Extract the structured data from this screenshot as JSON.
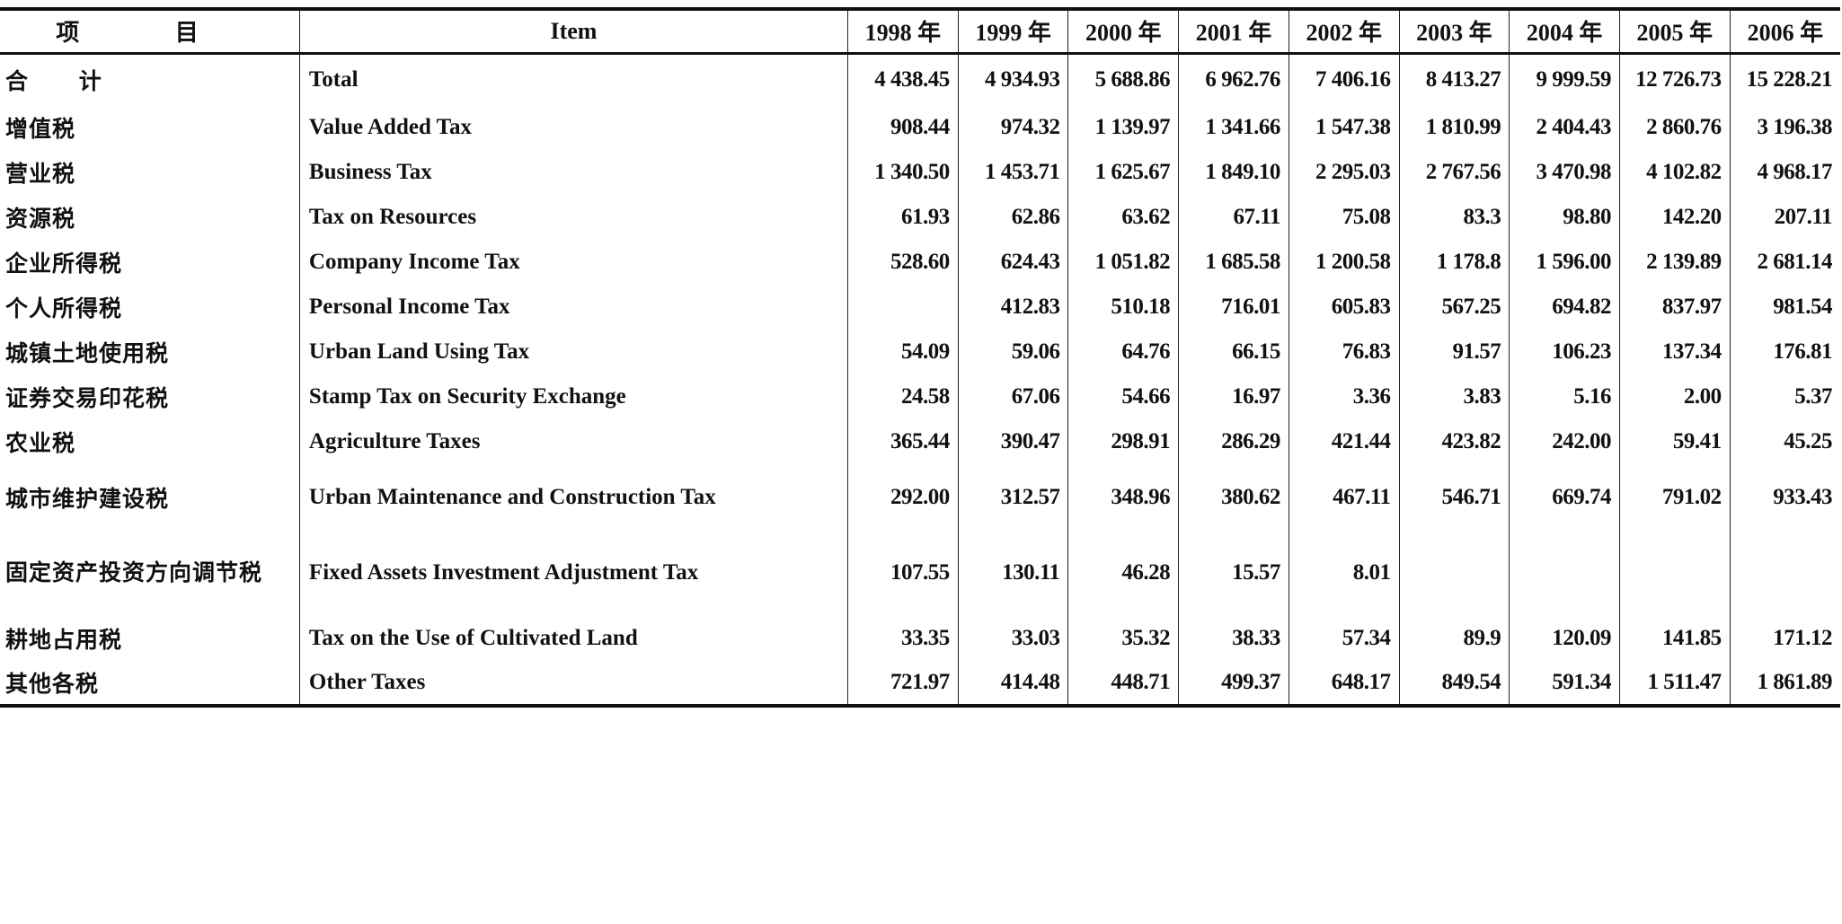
{
  "header": {
    "cn": "项 目",
    "en": "Item",
    "years": [
      "1998 年",
      "1999 年",
      "2000 年",
      "2001 年",
      "2002 年",
      "2003 年",
      "2004 年",
      "2005 年",
      "2006 年"
    ]
  },
  "rows": [
    {
      "cn": "合 计",
      "en": "Total",
      "values": [
        "4 438.45",
        "4 934.93",
        "5 688.86",
        "6 962.76",
        "7 406.16",
        "8 413.27",
        "9 999.59",
        "12 726.73",
        "15 228.21"
      ]
    },
    {
      "cn": "增值税",
      "en": "Value Added Tax",
      "values": [
        "908.44",
        "974.32",
        "1 139.97",
        "1 341.66",
        "1 547.38",
        "1 810.99",
        "2 404.43",
        "2 860.76",
        "3 196.38"
      ]
    },
    {
      "cn": "营业税",
      "en": "Business Tax",
      "values": [
        "1 340.50",
        "1 453.71",
        "1 625.67",
        "1 849.10",
        "2 295.03",
        "2 767.56",
        "3 470.98",
        "4 102.82",
        "4 968.17"
      ]
    },
    {
      "cn": "资源税",
      "en": "Tax on Resources",
      "values": [
        "61.93",
        "62.86",
        "63.62",
        "67.11",
        "75.08",
        "83.3",
        "98.80",
        "142.20",
        "207.11"
      ]
    },
    {
      "cn": "企业所得税",
      "en": "Company Income Tax",
      "values": [
        "528.60",
        "624.43",
        "1 051.82",
        "1 685.58",
        "1 200.58",
        "1 178.8",
        "1 596.00",
        "2 139.89",
        "2 681.14"
      ]
    },
    {
      "cn": "个人所得税",
      "en": "Personal Income Tax",
      "values": [
        "",
        "412.83",
        "510.18",
        "716.01",
        "605.83",
        "567.25",
        "694.82",
        "837.97",
        "981.54"
      ]
    },
    {
      "cn": "城镇土地使用税",
      "en": "Urban Land Using Tax",
      "values": [
        "54.09",
        "59.06",
        "64.76",
        "66.15",
        "76.83",
        "91.57",
        "106.23",
        "137.34",
        "176.81"
      ]
    },
    {
      "cn": "证券交易印花税",
      "en": "Stamp Tax on Security Exchange",
      "values": [
        "24.58",
        "67.06",
        "54.66",
        "16.97",
        "3.36",
        "3.83",
        "5.16",
        "2.00",
        "5.37"
      ]
    },
    {
      "cn": "农业税",
      "en": "Agriculture Taxes",
      "values": [
        "365.44",
        "390.47",
        "298.91",
        "286.29",
        "421.44",
        "423.82",
        "242.00",
        "59.41",
        "45.25"
      ]
    },
    {
      "cn": "城市维护建设税",
      "en": "Urban Maintenance and Construction Tax",
      "values": [
        "292.00",
        "312.57",
        "348.96",
        "380.62",
        "467.11",
        "546.71",
        "669.74",
        "791.02",
        "933.43"
      ]
    },
    {
      "cn": "固定资产投资方向调节税",
      "en": "Fixed Assets Investment Adjustment Tax",
      "values": [
        "107.55",
        "130.11",
        "46.28",
        "15.57",
        "8.01",
        "",
        "",
        "",
        ""
      ]
    },
    {
      "cn": "耕地占用税",
      "en": "Tax on the Use of Cultivated Land",
      "values": [
        "33.35",
        "33.03",
        "35.32",
        "38.33",
        "57.34",
        "89.9",
        "120.09",
        "141.85",
        "171.12"
      ]
    },
    {
      "cn": "其他各税",
      "en": "Other Taxes",
      "values": [
        "721.97",
        "414.48",
        "448.71",
        "499.37",
        "648.17",
        "849.54",
        "591.34",
        "1 511.47",
        "1 861.89"
      ]
    }
  ]
}
